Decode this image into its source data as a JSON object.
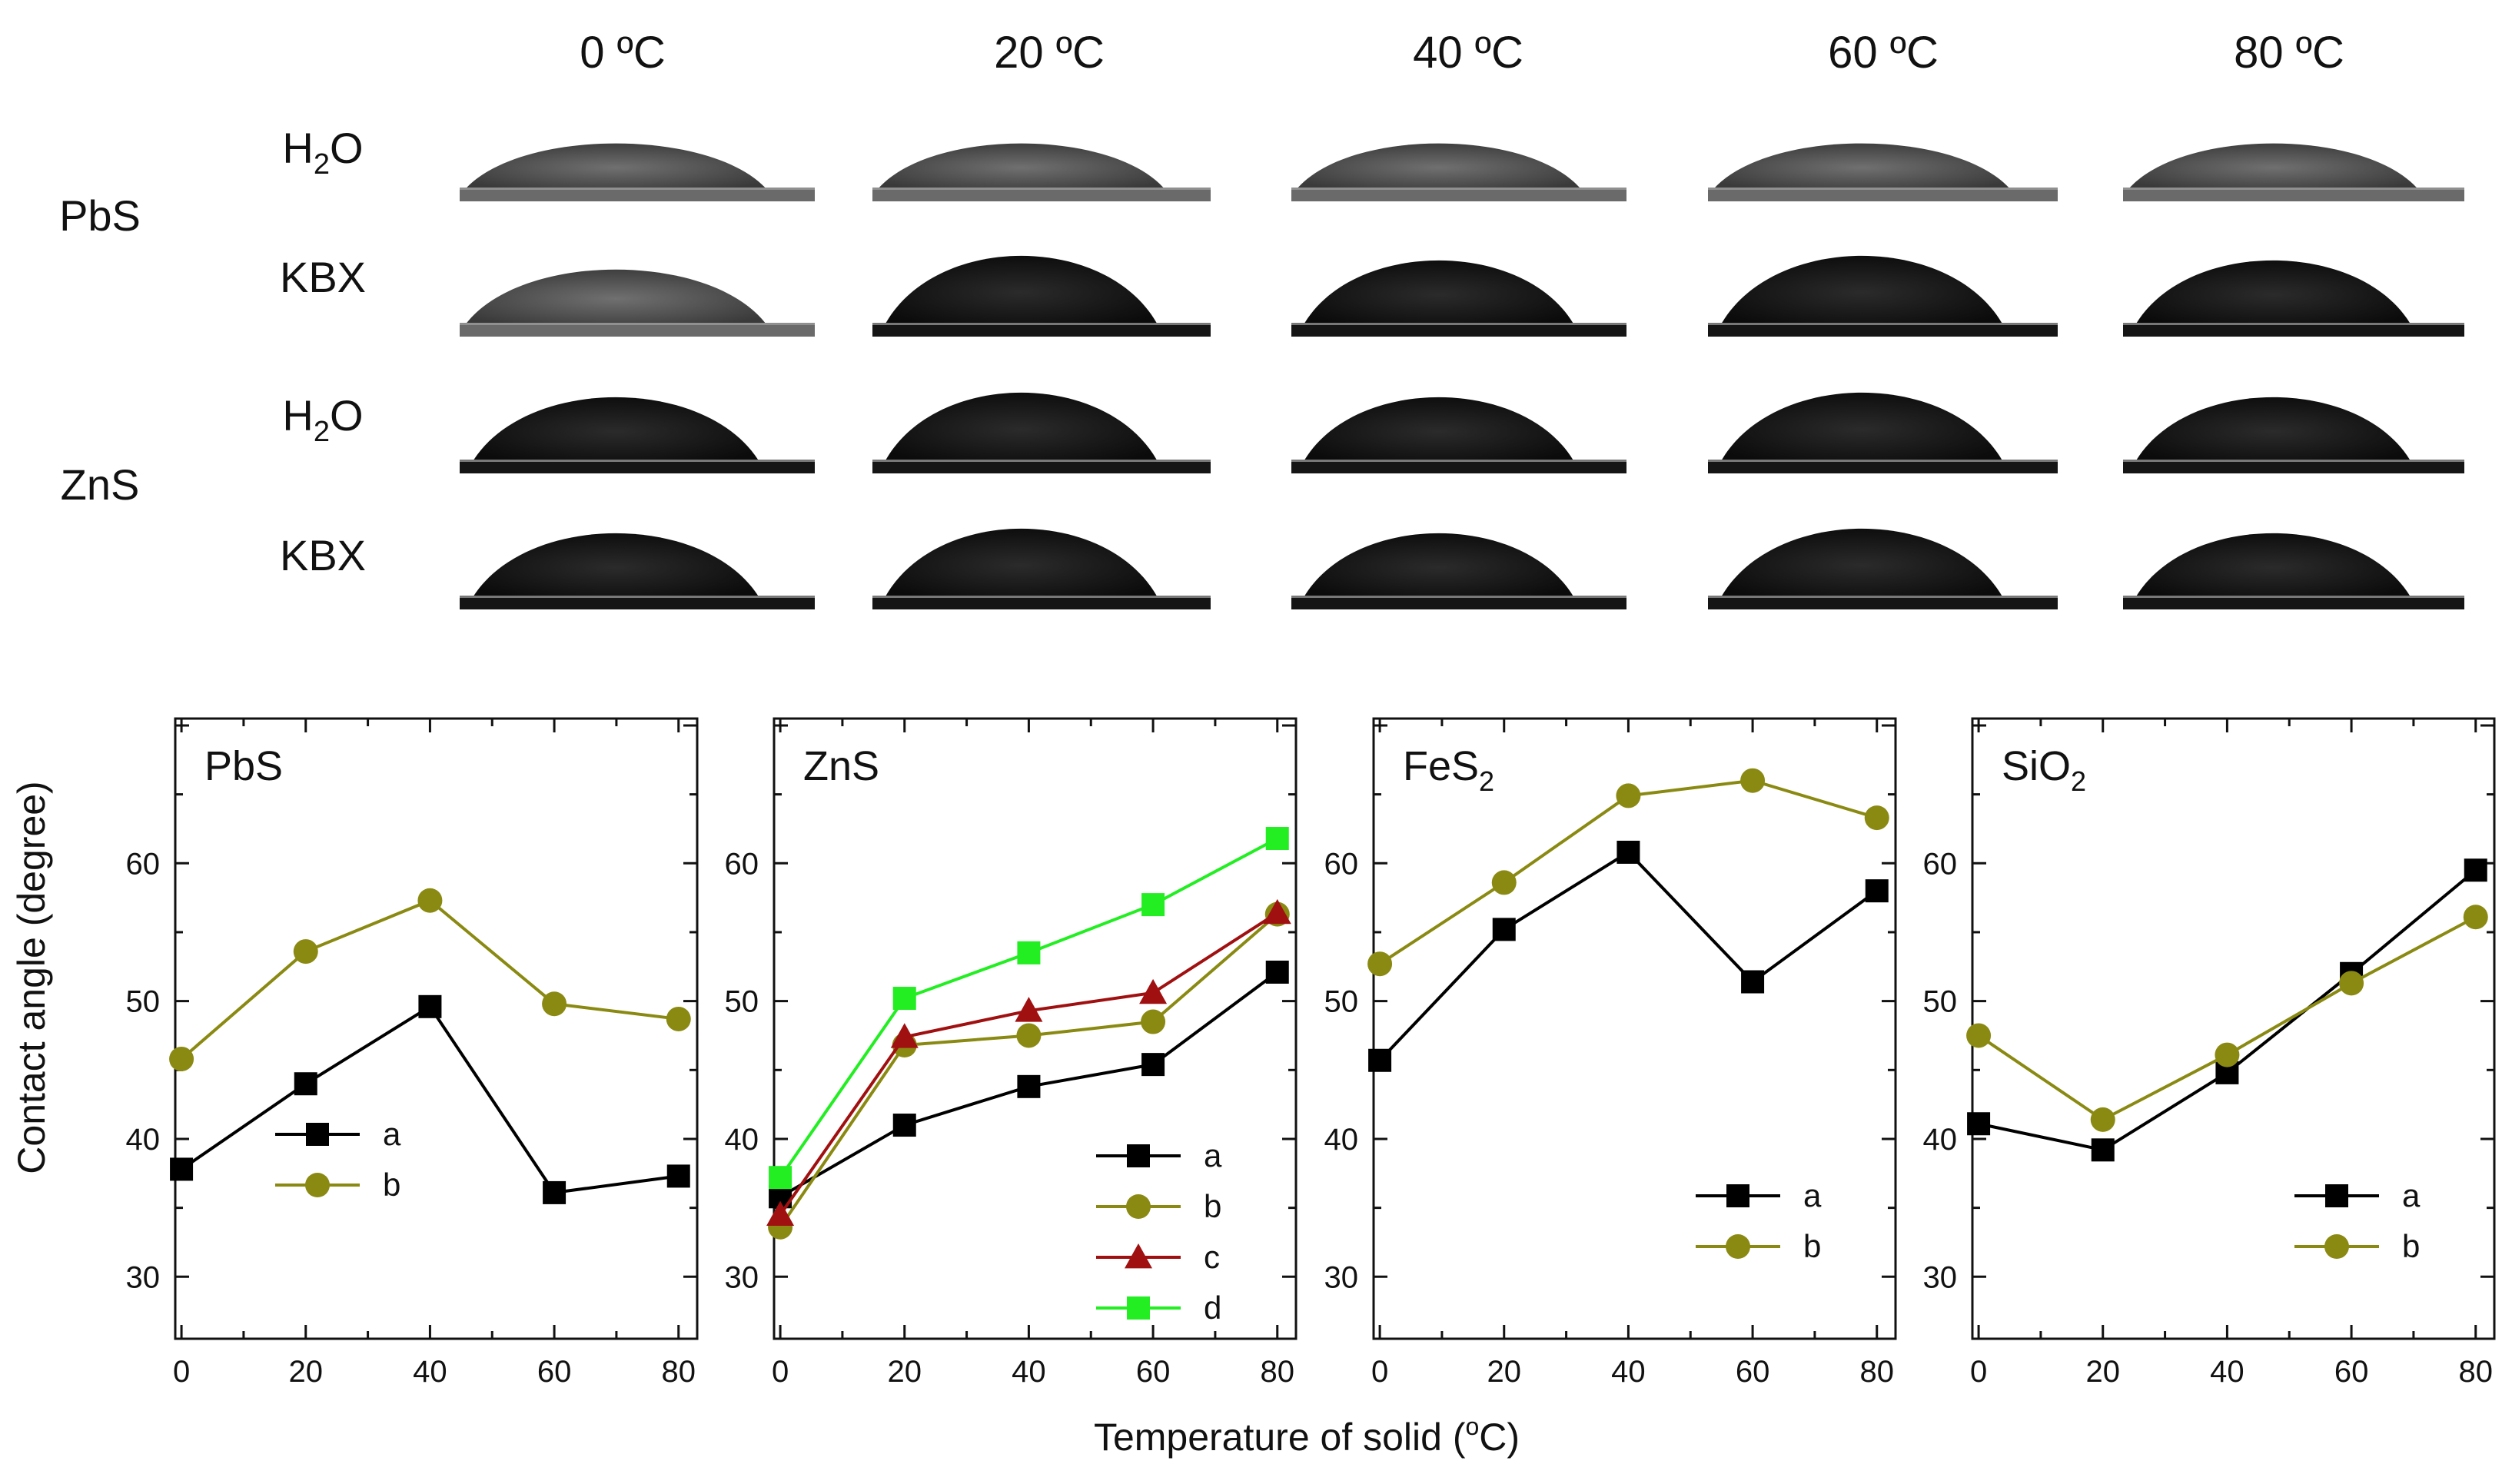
{
  "photos": {
    "temperatures": [
      "0 ºC",
      "20 ºC",
      "40 ºC",
      "60 ºC",
      "80 ºC"
    ],
    "groups": [
      {
        "mineral": "PbS",
        "rows": [
          {
            "liquid": "H",
            "sub": "2",
            "tail": "O",
            "shade": "gray"
          },
          {
            "liquid": "KBX",
            "sub": "",
            "tail": "",
            "shade": "mixed"
          }
        ]
      },
      {
        "mineral": "ZnS",
        "rows": [
          {
            "liquid": "H",
            "sub": "2",
            "tail": "O",
            "shade": "dark"
          },
          {
            "liquid": "KBX",
            "sub": "",
            "tail": "",
            "shade": "dark"
          }
        ]
      }
    ]
  },
  "shared_axis": {
    "ylabel": "Contact angle (degree)",
    "xlabel_pre": "Temperature of solid (",
    "xlabel_sup": "o",
    "xlabel_post": "C)"
  },
  "colors": {
    "a": "#000000",
    "b": "#8a8a12",
    "c": "#a01010",
    "d": "#22ee22"
  },
  "chart_data": [
    {
      "type": "line",
      "title": "PbS",
      "title_sub": "",
      "x": [
        0,
        20,
        40,
        60,
        80
      ],
      "xticks": [
        "0",
        "20",
        "40",
        "60",
        "80"
      ],
      "yticks": [
        "30",
        "40",
        "50",
        "60"
      ],
      "xlim": [
        -1,
        83
      ],
      "ylim": [
        25.5,
        70.5
      ],
      "series": [
        {
          "name": "a",
          "marker": "square",
          "values": [
            37.8,
            44.0,
            49.6,
            36.1,
            37.3
          ]
        },
        {
          "name": "b",
          "marker": "circle",
          "values": [
            45.8,
            53.6,
            57.3,
            49.8,
            48.7
          ]
        }
      ],
      "legend_position": "bottom-left"
    },
    {
      "type": "line",
      "title": "ZnS",
      "title_sub": "",
      "x": [
        0,
        20,
        40,
        60,
        80
      ],
      "xticks": [
        "0",
        "20",
        "40",
        "60",
        "80"
      ],
      "yticks": [
        "30",
        "40",
        "50",
        "60"
      ],
      "xlim": [
        -1,
        83
      ],
      "ylim": [
        25.5,
        70.5
      ],
      "series": [
        {
          "name": "a",
          "marker": "square",
          "values": [
            35.8,
            41.0,
            43.8,
            45.4,
            52.1
          ]
        },
        {
          "name": "b",
          "marker": "circle",
          "values": [
            33.6,
            46.8,
            47.5,
            48.5,
            56.3
          ]
        },
        {
          "name": "c",
          "marker": "triangle",
          "values": [
            34.5,
            47.4,
            49.3,
            50.6,
            56.4
          ]
        },
        {
          "name": "d",
          "marker": "square",
          "values": [
            37.2,
            50.2,
            53.5,
            57.0,
            61.8
          ]
        }
      ],
      "legend_position": "bottom-right"
    },
    {
      "type": "line",
      "title": "FeS",
      "title_sub": "2",
      "x": [
        0,
        20,
        40,
        60,
        80
      ],
      "xticks": [
        "0",
        "20",
        "40",
        "60",
        "80"
      ],
      "yticks": [
        "30",
        "40",
        "50",
        "60"
      ],
      "xlim": [
        -1,
        83
      ],
      "ylim": [
        25.5,
        70.5
      ],
      "series": [
        {
          "name": "a",
          "marker": "square",
          "values": [
            45.7,
            55.2,
            60.8,
            51.4,
            58.0
          ]
        },
        {
          "name": "b",
          "marker": "circle",
          "values": [
            52.7,
            58.6,
            64.9,
            66.0,
            63.3
          ]
        }
      ],
      "legend_position": "bottom-right"
    },
    {
      "type": "line",
      "title": "SiO",
      "title_sub": "2",
      "x": [
        0,
        20,
        40,
        60,
        80
      ],
      "xticks": [
        "0",
        "20",
        "40",
        "60",
        "80"
      ],
      "yticks": [
        "30",
        "40",
        "50",
        "60"
      ],
      "xlim": [
        -1,
        83
      ],
      "ylim": [
        25.5,
        70.5
      ],
      "series": [
        {
          "name": "a",
          "marker": "square",
          "values": [
            41.1,
            39.2,
            44.8,
            52.0,
            59.5
          ]
        },
        {
          "name": "b",
          "marker": "circle",
          "values": [
            47.5,
            41.4,
            46.1,
            51.3,
            56.1
          ]
        }
      ],
      "legend_position": "bottom-right"
    }
  ]
}
